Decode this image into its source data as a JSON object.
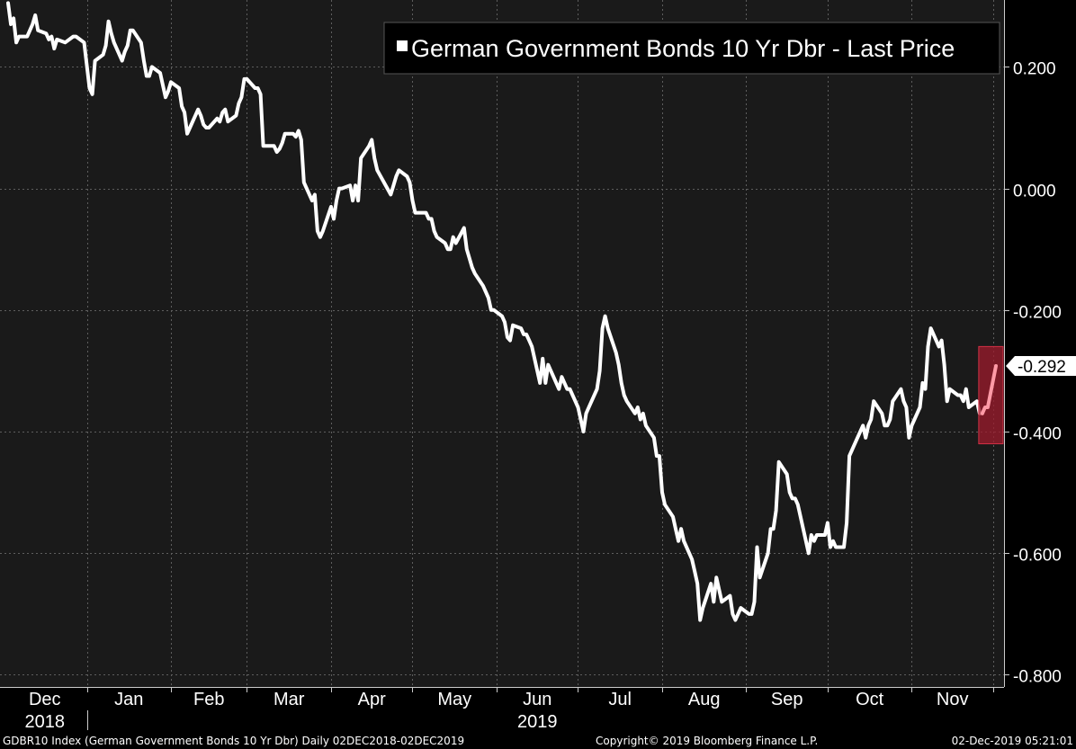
{
  "chart_data": {
    "type": "line",
    "title": "German Government Bonds 10 Yr Dbr - Last Price",
    "ylim": [
      -0.82,
      0.31
    ],
    "y_ticks": [
      0.2,
      0.0,
      -0.2,
      -0.4,
      -0.6,
      -0.8
    ],
    "y_tick_labels": [
      "0.200",
      "0.000",
      "-0.200",
      "-0.400",
      "-0.600",
      "-0.800"
    ],
    "x_month_labels": [
      "Dec",
      "Jan",
      "Feb",
      "Mar",
      "Apr",
      "May",
      "Jun",
      "Jul",
      "Aug",
      "Sep",
      "Oct",
      "Nov"
    ],
    "x_year_labels": [
      "2018",
      "2019"
    ],
    "last_value": -0.292,
    "last_value_label": "-0.292",
    "grid": true,
    "legend_position": "top-right",
    "colors": {
      "background": "#1a1a1a",
      "line": "#ffffff",
      "highlight": "#ff9aa6",
      "highlight_box": "#9e1b2c"
    },
    "series": [
      {
        "name": "German Government Bonds 10 Yr Dbr - Last Price",
        "points": [
          [
            "2018-12-03",
            0.305
          ],
          [
            "2018-12-04",
            0.27
          ],
          [
            "2018-12-05",
            0.28
          ],
          [
            "2018-12-06",
            0.24
          ],
          [
            "2018-12-07",
            0.25
          ],
          [
            "2018-12-10",
            0.25
          ],
          [
            "2018-12-11",
            0.26
          ],
          [
            "2018-12-12",
            0.27
          ],
          [
            "2018-12-13",
            0.285
          ],
          [
            "2018-12-14",
            0.26
          ],
          [
            "2018-12-17",
            0.255
          ],
          [
            "2018-12-18",
            0.245
          ],
          [
            "2018-12-19",
            0.25
          ],
          [
            "2018-12-20",
            0.23
          ],
          [
            "2018-12-21",
            0.245
          ],
          [
            "2018-12-24",
            0.24
          ],
          [
            "2018-12-27",
            0.25
          ],
          [
            "2018-12-28",
            0.25
          ],
          [
            "2018-12-31",
            0.24
          ],
          [
            "2019-01-02",
            0.165
          ],
          [
            "2019-01-03",
            0.155
          ],
          [
            "2019-01-04",
            0.21
          ],
          [
            "2019-01-07",
            0.22
          ],
          [
            "2019-01-08",
            0.235
          ],
          [
            "2019-01-09",
            0.275
          ],
          [
            "2019-01-10",
            0.255
          ],
          [
            "2019-01-11",
            0.24
          ],
          [
            "2019-01-14",
            0.21
          ],
          [
            "2019-01-15",
            0.225
          ],
          [
            "2019-01-16",
            0.235
          ],
          [
            "2019-01-17",
            0.26
          ],
          [
            "2019-01-18",
            0.26
          ],
          [
            "2019-01-21",
            0.24
          ],
          [
            "2019-01-22",
            0.21
          ],
          [
            "2019-01-23",
            0.185
          ],
          [
            "2019-01-24",
            0.185
          ],
          [
            "2019-01-25",
            0.2
          ],
          [
            "2019-01-28",
            0.19
          ],
          [
            "2019-01-29",
            0.17
          ],
          [
            "2019-01-30",
            0.15
          ],
          [
            "2019-01-31",
            0.16
          ],
          [
            "2019-02-01",
            0.175
          ],
          [
            "2019-02-04",
            0.165
          ],
          [
            "2019-02-05",
            0.135
          ],
          [
            "2019-02-06",
            0.125
          ],
          [
            "2019-02-07",
            0.09
          ],
          [
            "2019-02-08",
            0.1
          ],
          [
            "2019-02-11",
            0.13
          ],
          [
            "2019-02-12",
            0.12
          ],
          [
            "2019-02-13",
            0.105
          ],
          [
            "2019-02-14",
            0.1
          ],
          [
            "2019-02-15",
            0.1
          ],
          [
            "2019-02-18",
            0.115
          ],
          [
            "2019-02-19",
            0.11
          ],
          [
            "2019-02-20",
            0.125
          ],
          [
            "2019-02-21",
            0.13
          ],
          [
            "2019-02-22",
            0.11
          ],
          [
            "2019-02-25",
            0.12
          ],
          [
            "2019-02-26",
            0.14
          ],
          [
            "2019-02-27",
            0.15
          ],
          [
            "2019-02-28",
            0.18
          ],
          [
            "2019-03-01",
            0.18
          ],
          [
            "2019-03-04",
            0.165
          ],
          [
            "2019-03-05",
            0.165
          ],
          [
            "2019-03-06",
            0.155
          ],
          [
            "2019-03-07",
            0.07
          ],
          [
            "2019-03-08",
            0.07
          ],
          [
            "2019-03-11",
            0.07
          ],
          [
            "2019-03-12",
            0.06
          ],
          [
            "2019-03-13",
            0.065
          ],
          [
            "2019-03-14",
            0.075
          ],
          [
            "2019-03-15",
            0.09
          ],
          [
            "2019-03-18",
            0.09
          ],
          [
            "2019-03-19",
            0.085
          ],
          [
            "2019-03-20",
            0.095
          ],
          [
            "2019-03-21",
            0.08
          ],
          [
            "2019-03-22",
            0.01
          ],
          [
            "2019-03-25",
            -0.02
          ],
          [
            "2019-03-26",
            -0.01
          ],
          [
            "2019-03-27",
            -0.07
          ],
          [
            "2019-03-28",
            -0.08
          ],
          [
            "2019-03-29",
            -0.07
          ],
          [
            "2019-04-01",
            -0.03
          ],
          [
            "2019-04-02",
            -0.05
          ],
          [
            "2019-04-03",
            -0.02
          ],
          [
            "2019-04-04",
            0.0
          ],
          [
            "2019-04-05",
            0.0
          ],
          [
            "2019-04-08",
            0.005
          ],
          [
            "2019-04-09",
            -0.02
          ],
          [
            "2019-04-10",
            0.005
          ],
          [
            "2019-04-11",
            -0.02
          ],
          [
            "2019-04-12",
            0.05
          ],
          [
            "2019-04-15",
            0.07
          ],
          [
            "2019-04-16",
            0.08
          ],
          [
            "2019-04-17",
            0.05
          ],
          [
            "2019-04-18",
            0.03
          ],
          [
            "2019-04-23",
            -0.01
          ],
          [
            "2019-04-24",
            0.005
          ],
          [
            "2019-04-25",
            0.02
          ],
          [
            "2019-04-26",
            0.03
          ],
          [
            "2019-04-29",
            0.02
          ],
          [
            "2019-04-30",
            0.01
          ],
          [
            "2019-05-01",
            -0.02
          ],
          [
            "2019-05-02",
            -0.04
          ],
          [
            "2019-05-06",
            -0.04
          ],
          [
            "2019-05-07",
            -0.05
          ],
          [
            "2019-05-08",
            -0.05
          ],
          [
            "2019-05-09",
            -0.07
          ],
          [
            "2019-05-10",
            -0.08
          ],
          [
            "2019-05-13",
            -0.09
          ],
          [
            "2019-05-14",
            -0.1
          ],
          [
            "2019-05-15",
            -0.1
          ],
          [
            "2019-05-16",
            -0.08
          ],
          [
            "2019-05-17",
            -0.09
          ],
          [
            "2019-05-20",
            -0.065
          ],
          [
            "2019-05-21",
            -0.1
          ],
          [
            "2019-05-22",
            -0.115
          ],
          [
            "2019-05-23",
            -0.13
          ],
          [
            "2019-05-24",
            -0.14
          ],
          [
            "2019-05-27",
            -0.16
          ],
          [
            "2019-05-28",
            -0.17
          ],
          [
            "2019-05-29",
            -0.18
          ],
          [
            "2019-05-30",
            -0.2
          ],
          [
            "2019-05-31",
            -0.2
          ],
          [
            "2019-06-03",
            -0.21
          ],
          [
            "2019-06-04",
            -0.22
          ],
          [
            "2019-06-05",
            -0.245
          ],
          [
            "2019-06-06",
            -0.25
          ],
          [
            "2019-06-07",
            -0.225
          ],
          [
            "2019-06-10",
            -0.23
          ],
          [
            "2019-06-11",
            -0.24
          ],
          [
            "2019-06-12",
            -0.24
          ],
          [
            "2019-06-13",
            -0.25
          ],
          [
            "2019-06-14",
            -0.26
          ],
          [
            "2019-06-17",
            -0.32
          ],
          [
            "2019-06-18",
            -0.28
          ],
          [
            "2019-06-19",
            -0.32
          ],
          [
            "2019-06-20",
            -0.29
          ],
          [
            "2019-06-21",
            -0.3
          ],
          [
            "2019-06-24",
            -0.33
          ],
          [
            "2019-06-25",
            -0.31
          ],
          [
            "2019-06-26",
            -0.32
          ],
          [
            "2019-06-27",
            -0.33
          ],
          [
            "2019-06-28",
            -0.33
          ],
          [
            "2019-07-01",
            -0.36
          ],
          [
            "2019-07-02",
            -0.38
          ],
          [
            "2019-07-03",
            -0.4
          ],
          [
            "2019-07-04",
            -0.37
          ],
          [
            "2019-07-05",
            -0.36
          ],
          [
            "2019-07-08",
            -0.33
          ],
          [
            "2019-07-09",
            -0.3
          ],
          [
            "2019-07-10",
            -0.23
          ],
          [
            "2019-07-11",
            -0.21
          ],
          [
            "2019-07-12",
            -0.23
          ],
          [
            "2019-07-15",
            -0.27
          ],
          [
            "2019-07-16",
            -0.29
          ],
          [
            "2019-07-17",
            -0.32
          ],
          [
            "2019-07-18",
            -0.34
          ],
          [
            "2019-07-19",
            -0.35
          ],
          [
            "2019-07-22",
            -0.37
          ],
          [
            "2019-07-23",
            -0.36
          ],
          [
            "2019-07-24",
            -0.38
          ],
          [
            "2019-07-25",
            -0.37
          ],
          [
            "2019-07-26",
            -0.39
          ],
          [
            "2019-07-29",
            -0.41
          ],
          [
            "2019-07-30",
            -0.44
          ],
          [
            "2019-07-31",
            -0.44
          ],
          [
            "2019-08-01",
            -0.5
          ],
          [
            "2019-08-02",
            -0.52
          ],
          [
            "2019-08-05",
            -0.54
          ],
          [
            "2019-08-06",
            -0.56
          ],
          [
            "2019-08-07",
            -0.58
          ],
          [
            "2019-08-08",
            -0.56
          ],
          [
            "2019-08-09",
            -0.58
          ],
          [
            "2019-08-12",
            -0.61
          ],
          [
            "2019-08-13",
            -0.63
          ],
          [
            "2019-08-14",
            -0.65
          ],
          [
            "2019-08-15",
            -0.71
          ],
          [
            "2019-08-16",
            -0.69
          ],
          [
            "2019-08-19",
            -0.65
          ],
          [
            "2019-08-20",
            -0.68
          ],
          [
            "2019-08-21",
            -0.64
          ],
          [
            "2019-08-22",
            -0.66
          ],
          [
            "2019-08-23",
            -0.68
          ],
          [
            "2019-08-26",
            -0.67
          ],
          [
            "2019-08-27",
            -0.7
          ],
          [
            "2019-08-28",
            -0.71
          ],
          [
            "2019-08-29",
            -0.7
          ],
          [
            "2019-08-30",
            -0.69
          ],
          [
            "2019-09-02",
            -0.7
          ],
          [
            "2019-09-03",
            -0.7
          ],
          [
            "2019-09-04",
            -0.68
          ],
          [
            "2019-09-05",
            -0.59
          ],
          [
            "2019-09-06",
            -0.64
          ],
          [
            "2019-09-09",
            -0.6
          ],
          [
            "2019-09-10",
            -0.56
          ],
          [
            "2019-09-11",
            -0.56
          ],
          [
            "2019-09-12",
            -0.53
          ],
          [
            "2019-09-13",
            -0.45
          ],
          [
            "2019-09-16",
            -0.47
          ],
          [
            "2019-09-17",
            -0.5
          ],
          [
            "2019-09-18",
            -0.51
          ],
          [
            "2019-09-19",
            -0.51
          ],
          [
            "2019-09-20",
            -0.52
          ],
          [
            "2019-09-23",
            -0.58
          ],
          [
            "2019-09-24",
            -0.6
          ],
          [
            "2019-09-25",
            -0.57
          ],
          [
            "2019-09-26",
            -0.58
          ],
          [
            "2019-09-27",
            -0.57
          ],
          [
            "2019-09-30",
            -0.57
          ],
          [
            "2019-10-01",
            -0.55
          ],
          [
            "2019-10-02",
            -0.59
          ],
          [
            "2019-10-03",
            -0.58
          ],
          [
            "2019-10-04",
            -0.59
          ],
          [
            "2019-10-07",
            -0.59
          ],
          [
            "2019-10-08",
            -0.55
          ],
          [
            "2019-10-09",
            -0.44
          ],
          [
            "2019-10-10",
            -0.43
          ],
          [
            "2019-10-11",
            -0.42
          ],
          [
            "2019-10-14",
            -0.39
          ],
          [
            "2019-10-15",
            -0.41
          ],
          [
            "2019-10-16",
            -0.39
          ],
          [
            "2019-10-17",
            -0.38
          ],
          [
            "2019-10-18",
            -0.35
          ],
          [
            "2019-10-21",
            -0.37
          ],
          [
            "2019-10-22",
            -0.39
          ],
          [
            "2019-10-23",
            -0.39
          ],
          [
            "2019-10-24",
            -0.38
          ],
          [
            "2019-10-25",
            -0.35
          ],
          [
            "2019-10-28",
            -0.33
          ],
          [
            "2019-10-29",
            -0.35
          ],
          [
            "2019-10-30",
            -0.36
          ],
          [
            "2019-10-31",
            -0.41
          ],
          [
            "2019-11-01",
            -0.39
          ],
          [
            "2019-11-04",
            -0.36
          ],
          [
            "2019-11-05",
            -0.32
          ],
          [
            "2019-11-06",
            -0.33
          ],
          [
            "2019-11-07",
            -0.26
          ],
          [
            "2019-11-08",
            -0.23
          ],
          [
            "2019-11-11",
            -0.26
          ],
          [
            "2019-11-12",
            -0.25
          ],
          [
            "2019-11-13",
            -0.29
          ],
          [
            "2019-11-14",
            -0.35
          ],
          [
            "2019-11-15",
            -0.33
          ],
          [
            "2019-11-18",
            -0.34
          ],
          [
            "2019-11-19",
            -0.34
          ],
          [
            "2019-11-20",
            -0.35
          ],
          [
            "2019-11-21",
            -0.33
          ],
          [
            "2019-11-22",
            -0.36
          ],
          [
            "2019-11-25",
            -0.35
          ],
          [
            "2019-11-26",
            -0.37
          ],
          [
            "2019-11-27",
            -0.37
          ],
          [
            "2019-11-28",
            -0.36
          ],
          [
            "2019-11-29",
            -0.36
          ],
          [
            "2019-12-02",
            -0.292
          ]
        ]
      }
    ]
  },
  "footer": {
    "left": "GDBR10 Index (German Government Bonds 10 Yr Dbr)  Daily 02DEC2018-02DEC2019",
    "center": "Copyright© 2019 Bloomberg Finance L.P.",
    "right": "02-Dec-2019 05:21:01"
  }
}
